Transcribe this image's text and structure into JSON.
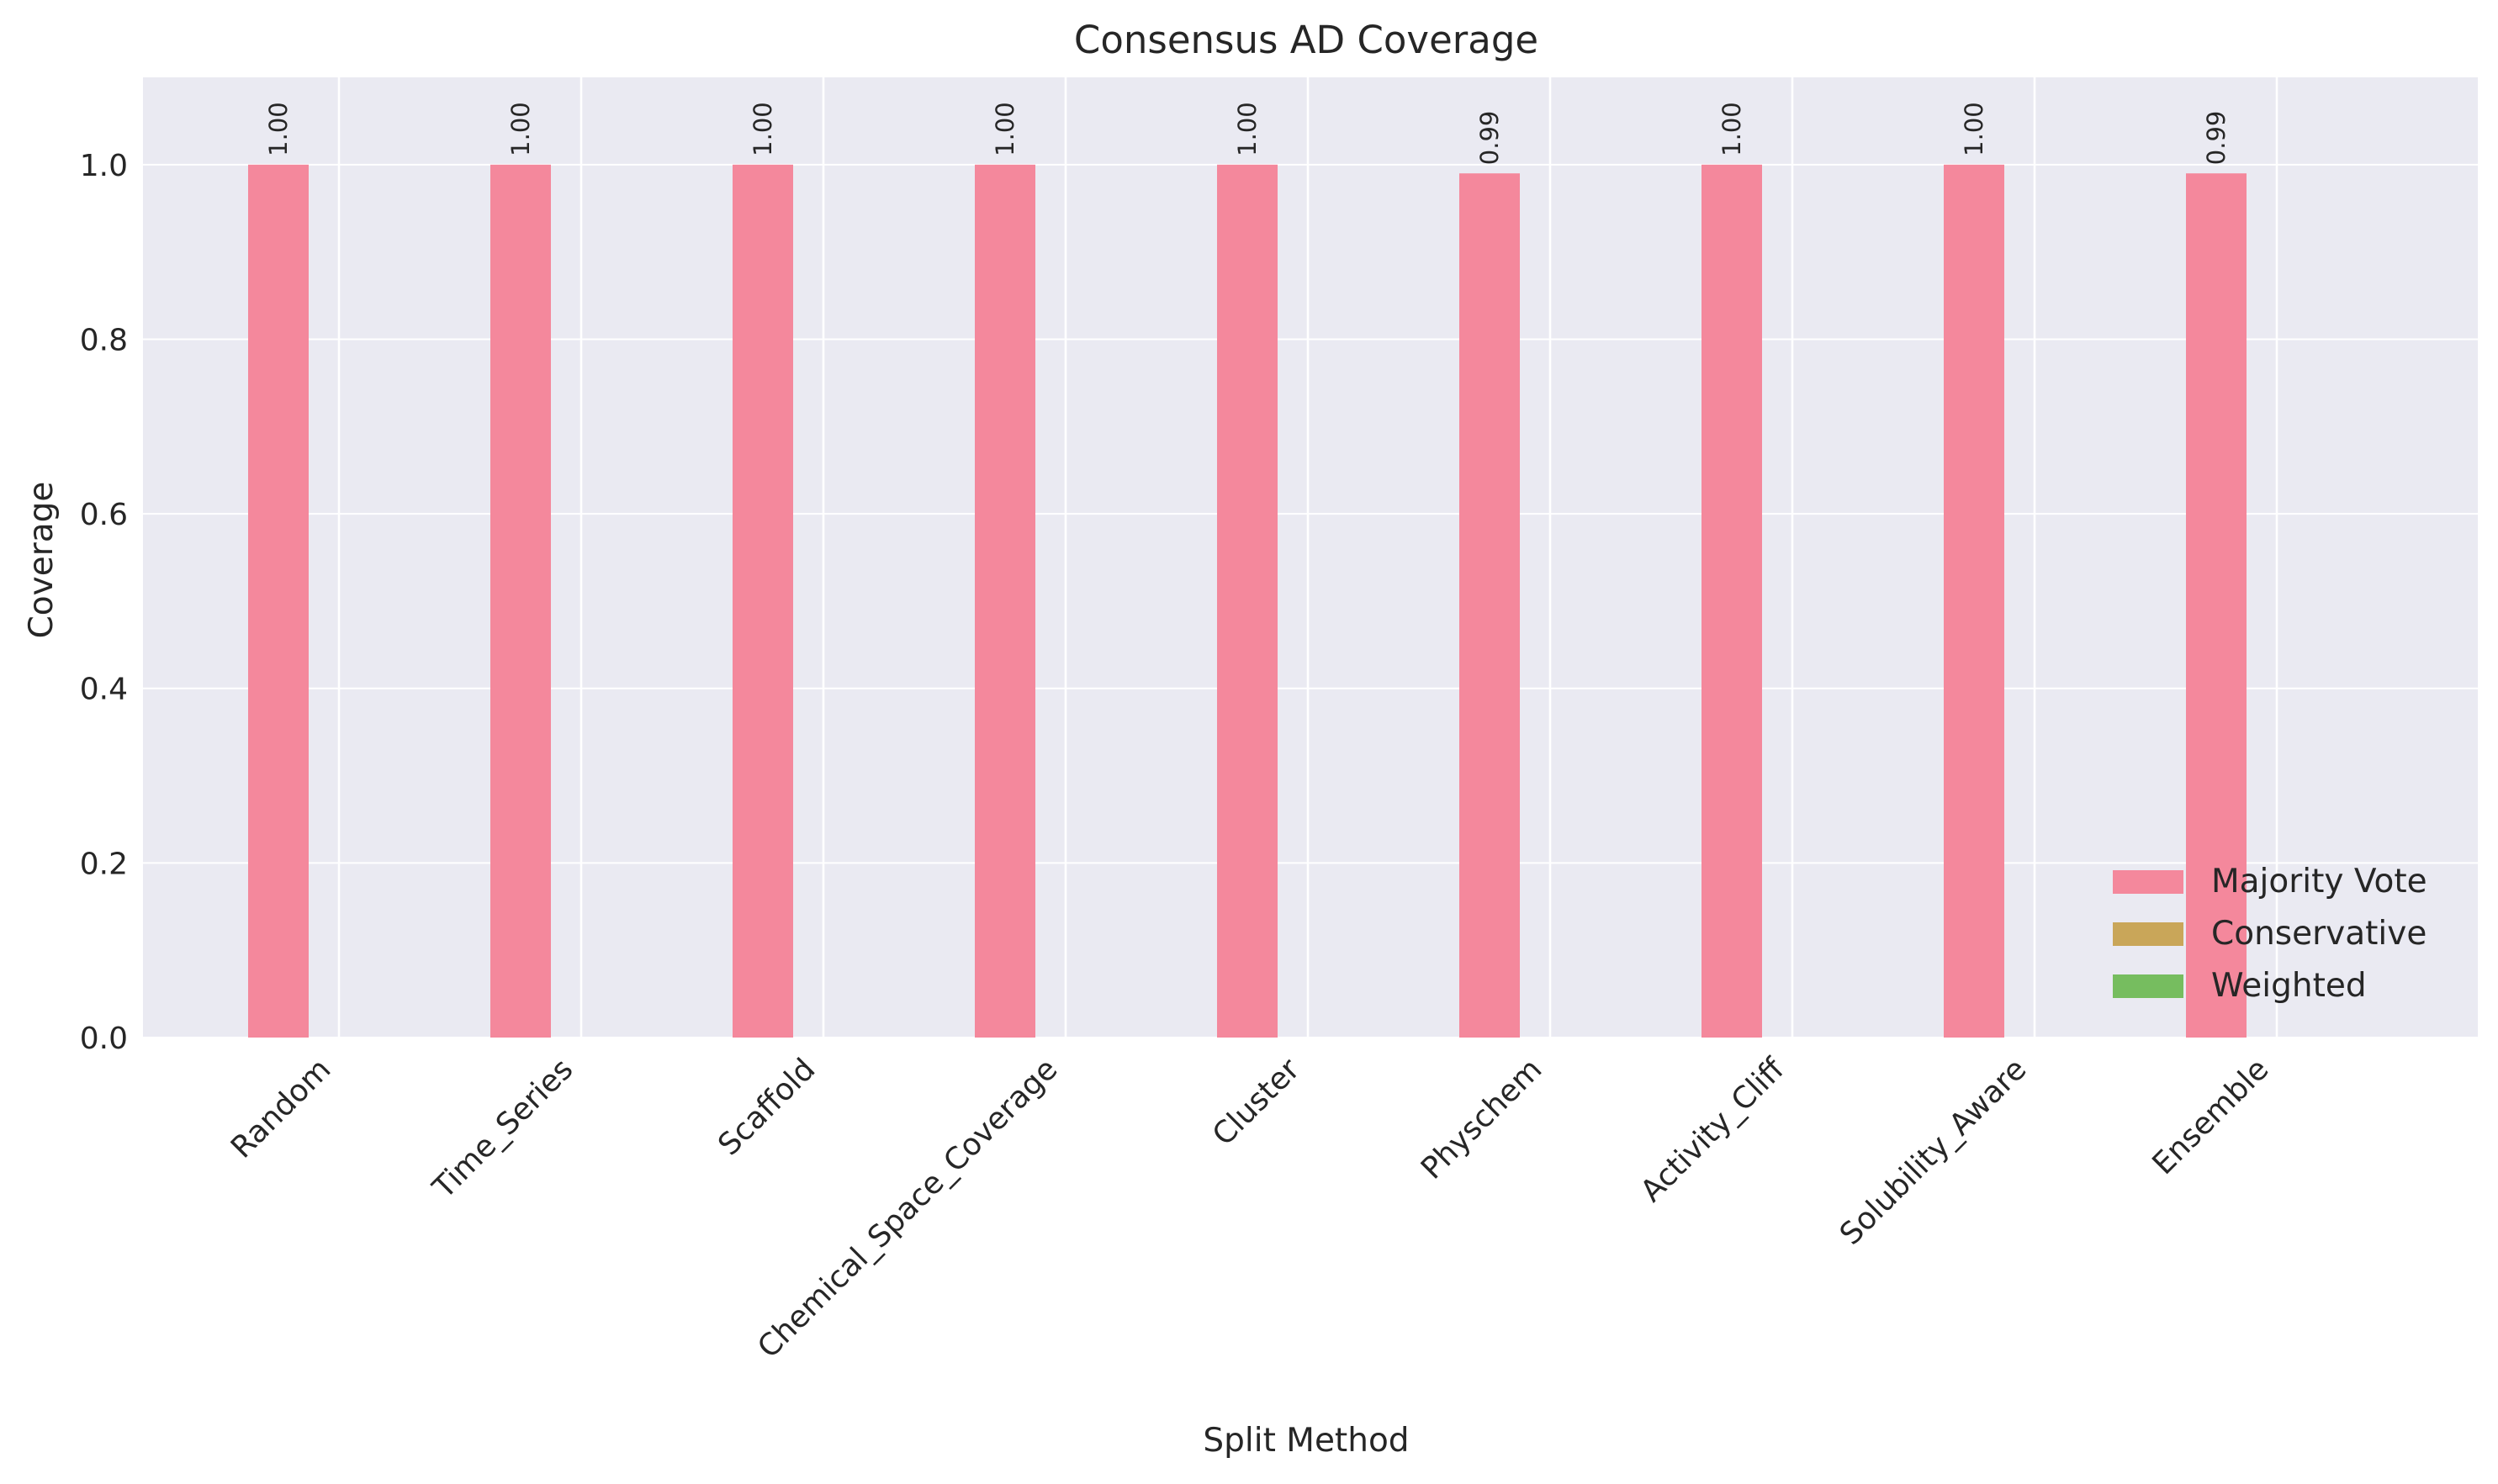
{
  "chart_data": {
    "type": "bar",
    "title": "Consensus AD Coverage",
    "xlabel": "Split Method",
    "ylabel": "Coverage",
    "ylim": [
      0,
      1.1
    ],
    "yticks": [
      "0.0",
      "0.2",
      "0.4",
      "0.6",
      "0.8",
      "1.0"
    ],
    "grid": true,
    "legend_position": "bottom-right",
    "categories": [
      "Random",
      "Time_Series",
      "Scaffold",
      "Chemical_Space_Coverage",
      "Cluster",
      "Physchem",
      "Activity_Cliff",
      "Solubility_Aware",
      "Ensemble"
    ],
    "series": [
      {
        "name": "Majority Vote",
        "color": "#f4889c",
        "values": [
          1.0,
          1.0,
          1.0,
          1.0,
          1.0,
          0.99,
          1.0,
          1.0,
          0.99
        ],
        "labels": [
          "1.00",
          "1.00",
          "1.00",
          "1.00",
          "1.00",
          "0.99",
          "1.00",
          "1.00",
          "0.99"
        ]
      },
      {
        "name": "Conservative",
        "color": "#c9a659",
        "values": [
          0,
          0,
          0,
          0,
          0,
          0,
          0,
          0,
          0
        ]
      },
      {
        "name": "Weighted",
        "color": "#76bd5f",
        "values": [
          0,
          0,
          0,
          0,
          0,
          0,
          0,
          0,
          0
        ]
      }
    ],
    "background": "#eaeaf2"
  }
}
